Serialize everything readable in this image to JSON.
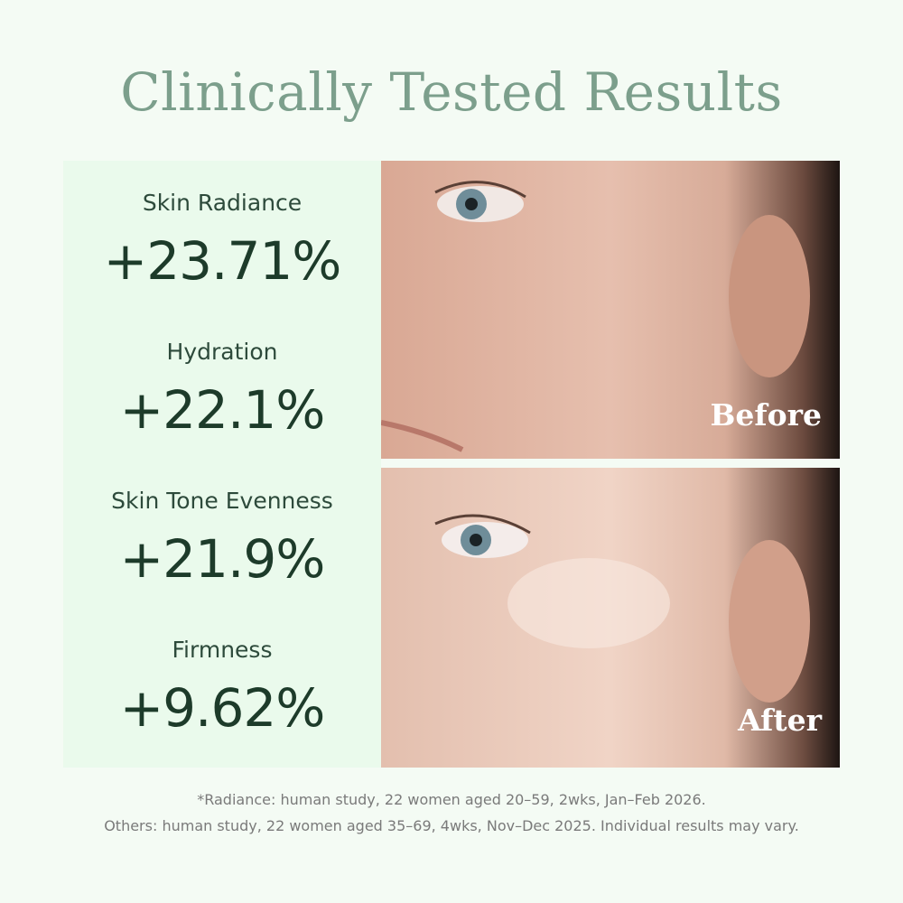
{
  "header": {
    "title": "Clinically Tested Results"
  },
  "metrics": [
    {
      "label": "Skin Radiance",
      "value": "+23.71%"
    },
    {
      "label": "Hydration",
      "value": "+22.1%"
    },
    {
      "label": "Skin Tone Evenness",
      "value": "+21.9%"
    },
    {
      "label": "Firmness",
      "value": "+9.62%"
    }
  ],
  "photos": [
    {
      "label": "Before"
    },
    {
      "label": "After"
    }
  ],
  "footnotes": [
    "*Radiance: human study, 22 women aged 20–59, 2wks, Jan–Feb 2026.",
    "Others: human study, 22 women aged 35–69, 4wks, Nov–Dec 2025. Individual results may vary."
  ]
}
